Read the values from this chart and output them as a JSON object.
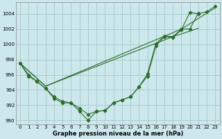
{
  "xlabel": "Graphe pression niveau de la mer (hPa)",
  "background_color": "#cce8ec",
  "grid_color": "#aacccc",
  "line_color": "#2d6b2d",
  "xlim": [
    -0.5,
    23.5
  ],
  "ylim": [
    989.5,
    1005.5
  ],
  "yticks": [
    990,
    992,
    994,
    996,
    998,
    1000,
    1002,
    1004
  ],
  "xticks": [
    0,
    1,
    2,
    3,
    4,
    5,
    6,
    7,
    8,
    9,
    10,
    11,
    12,
    13,
    14,
    15,
    16,
    17,
    18,
    19,
    20,
    21,
    22,
    23
  ],
  "series_with_markers": [
    [
      997.5,
      996.0,
      995.1,
      994.2,
      992.9,
      992.3,
      992.3,
      991.2,
      990.0,
      991.2,
      991.3,
      992.3,
      992.7,
      993.1,
      994.4,
      995.8,
      999.8,
      1001.0,
      1000.9,
      1001.9,
      1004.2,
      1004.0,
      1004.3,
      1005.0
    ],
    [
      997.5,
      995.8,
      995.1,
      994.2,
      993.1,
      992.5,
      992.3,
      991.6,
      990.8,
      991.2,
      991.3,
      992.3,
      992.7,
      993.1,
      994.4,
      996.1,
      1000.1,
      1001.1,
      1001.0,
      1002.0,
      1002.0,
      1004.1,
      null,
      null
    ]
  ],
  "series_smooth": [
    [
      [
        0,
        3,
        19,
        23
      ],
      [
        997.5,
        994.5,
        1002.0,
        1004.8
      ]
    ],
    [
      [
        0,
        3,
        18,
        21
      ],
      [
        997.5,
        994.5,
        1001.0,
        1002.1
      ]
    ]
  ]
}
